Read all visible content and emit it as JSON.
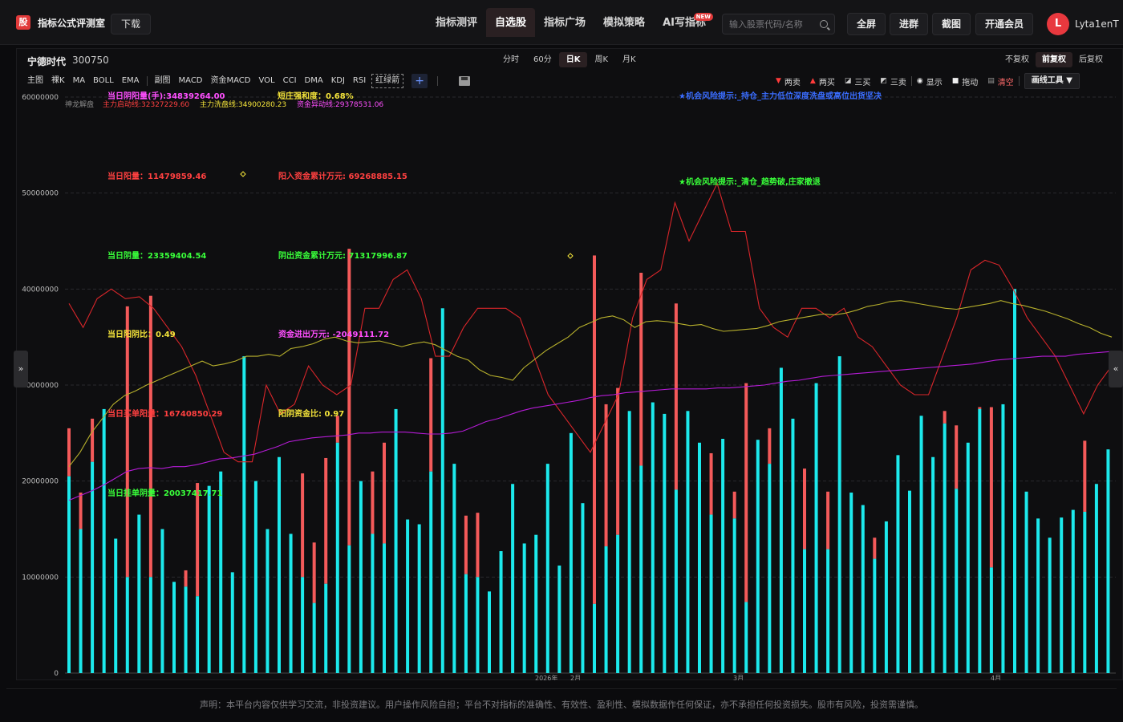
{
  "header": {
    "logo": "股",
    "app_title": "指标公式评测室",
    "download": "下载",
    "nav": [
      {
        "label": "指标测评"
      },
      {
        "label": "自选股"
      },
      {
        "label": "指标广场"
      },
      {
        "label": "模拟策略"
      },
      {
        "label": "AI写指标",
        "badge": "NEW"
      }
    ],
    "active_nav": "自选股",
    "search_placeholder": "输入股票代码/名称",
    "fullscreen": "全屏",
    "advanced": "进群",
    "screenshot": "截图",
    "membership": "开通会员",
    "avatar_letter": "L",
    "username": "Lyta1enT"
  },
  "stock": {
    "name": "宁德时代",
    "code": "300750"
  },
  "periods": [
    "分时",
    "60分",
    "日K",
    "周K",
    "月K"
  ],
  "active_period": "日K",
  "adjust": [
    "不复权",
    "前复权",
    "后复权"
  ],
  "active_adjust": "前复权",
  "indicators": {
    "group1": [
      "主图",
      "裸K",
      "MA",
      "BOLL",
      "EMA"
    ],
    "group2": [
      "副图",
      "MACD",
      "资金MACD",
      "VOL",
      "CCI",
      "DMA",
      "KDJ",
      "RSI"
    ],
    "redgreen": "红绿箭",
    "plus": "+"
  },
  "drawtools": {
    "sell2": "两卖",
    "buy2": "两买",
    "buy3": "三买",
    "sell3": "三卖",
    "show": "显示",
    "drag": "拖动",
    "clear": "清空",
    "tools": "画线工具 ▼"
  },
  "chart_data": {
    "type": "bar",
    "ylim": [
      0,
      60000000
    ],
    "y_ticks": [
      "60000000",
      "50000000",
      "40000000",
      "30000000",
      "20000000",
      "10000000",
      "0"
    ],
    "x_ticks": [
      "2026年",
      "2月",
      "3月",
      "4月"
    ],
    "legend_row": [
      "神龙解盘",
      "主力启动线:32327229.60",
      "主力洗盘线:34900280.23",
      "资金异动线:29378531.06"
    ],
    "annotations": [
      {
        "text": "当日阴阳量(手):34839264.00",
        "color": "#ff4fff"
      },
      {
        "text": "短庄强和度：0.68%",
        "color": "#f4e43a"
      },
      {
        "text": "★机会风险提示:_持仓_主力低位深度洗盘或高位出货坚决",
        "color": "#3a6dff"
      },
      {
        "text": "当日阳量：11479859.46",
        "color": "#ff4040"
      },
      {
        "text": "阳入资金累计万元: 69268885.15",
        "color": "#ff4040"
      },
      {
        "text": "★机会风险提示:_清仓_趋势破,庄家撤退",
        "color": "#39ff3a"
      },
      {
        "text": "当日阴量：23359404.54",
        "color": "#39ff3a"
      },
      {
        "text": "阴出资金累计万元: 71317996.87",
        "color": "#39ff3a"
      },
      {
        "text": "当日阳阴比：0.49",
        "color": "#f4e43a"
      },
      {
        "text": "资金进出万元: -2049111.72",
        "color": "#ff4fff"
      },
      {
        "text": "当日买单阳量：16740850.29",
        "color": "#ff4040"
      },
      {
        "text": "阳阴资金比: 0.97",
        "color": "#f4e43a"
      },
      {
        "text": "当日挂单阴量：20037417.71",
        "color": "#39ff3a"
      }
    ],
    "cyan_values": [
      20.5,
      15,
      22,
      27.5,
      14,
      10,
      16.5,
      10,
      15,
      9.5,
      9,
      8,
      19.5,
      21,
      10.5,
      33,
      20,
      15,
      22.5,
      14.5,
      10,
      7.3,
      9.3,
      24,
      13.3,
      20,
      14.5,
      13.5,
      27.5,
      16,
      15.5,
      21,
      38,
      21.8,
      10.3,
      10,
      8.5,
      12.7,
      19.7,
      13.5,
      14.4,
      21.8,
      11.2,
      25,
      17.7,
      7.2,
      13.2,
      14.4,
      27.3,
      21.6,
      28.2,
      27,
      19.1,
      27.3,
      24,
      16.5,
      24.4,
      16.1,
      7.4,
      24.3,
      21.8,
      31.8,
      26.5,
      12.9,
      30.2,
      12.9,
      33,
      18.8,
      17.5,
      11.9,
      15.8,
      22.7,
      19,
      26.8,
      22.5,
      26,
      19.2,
      24,
      27.5,
      11,
      28,
      40,
      18.9,
      16.1,
      14.1,
      16.2,
      17,
      16.8,
      19.7,
      23.3
    ],
    "red_tops": [
      25.5,
      18.8,
      26.5,
      27.5,
      14,
      38.2,
      16.5,
      39.3,
      15,
      9.5,
      10.7,
      19.8,
      19.5,
      21,
      10.5,
      33,
      20,
      15,
      22.5,
      14.5,
      20.8,
      13.6,
      22.4,
      26.8,
      44.2,
      20,
      21,
      24,
      27.5,
      16,
      15.5,
      32.8,
      38,
      21.8,
      16.4,
      16.7,
      8.5,
      12.7,
      19.7,
      13.5,
      14.4,
      21.8,
      11.2,
      25,
      17.7,
      43.5,
      28,
      29.7,
      27.3,
      41.7,
      28.2,
      27,
      38.5,
      27.3,
      24,
      22.9,
      24.4,
      18.9,
      30.2,
      24.3,
      25.5,
      31.8,
      26.5,
      21.3,
      30.2,
      18.9,
      33,
      18.8,
      17.5,
      14.1,
      15.8,
      22.7,
      19,
      26.8,
      22.5,
      27.3,
      25.8,
      24,
      27.7,
      27.7,
      28,
      40,
      18.9,
      16.1,
      14.1,
      16.2,
      17,
      24.2,
      19.7,
      23.3
    ],
    "line_red": [
      38.5,
      36,
      39,
      40,
      39,
      39.2,
      38,
      36,
      34,
      31,
      27,
      23,
      22,
      22,
      30,
      27,
      28,
      32,
      30,
      29,
      30,
      38,
      38,
      41,
      42,
      39,
      33,
      33,
      36,
      38,
      38,
      38,
      37,
      33,
      29,
      27,
      25,
      23,
      26,
      29,
      37,
      41,
      42,
      49,
      45,
      48,
      51,
      46,
      46,
      38,
      36,
      35,
      38,
      38,
      37,
      38,
      35,
      34,
      32,
      30,
      29,
      29,
      33,
      37,
      42,
      43,
      42.5,
      40,
      37,
      35,
      33,
      30,
      27,
      30,
      32
    ],
    "line_olive": [
      21.5,
      23,
      25,
      26.5,
      28,
      28.9,
      29.4,
      30,
      30.5,
      31,
      31.5,
      32,
      32.5,
      32,
      32.2,
      32.5,
      33,
      33,
      33.2,
      33,
      33.8,
      34,
      34.3,
      34.8,
      35,
      34.6,
      34.4,
      34.5,
      34.6,
      34.3,
      34,
      34.3,
      34.5,
      34.2,
      33.6,
      33,
      32.6,
      31.6,
      31,
      30.8,
      30.5,
      31.8,
      32.7,
      33.6,
      34.3,
      35,
      36,
      36.5,
      37,
      37.2,
      36.8,
      36,
      36.6,
      36.7,
      36.6,
      36.4,
      36.2,
      36.3,
      35.9,
      35.6,
      35.7,
      35.8,
      35.9,
      36.2,
      36.6,
      36.8,
      37,
      37.2,
      37.4,
      37.3,
      37.5,
      37.8,
      38.2,
      38.4,
      38.7,
      38.8,
      38.6,
      38.4,
      38.2,
      38,
      37.9,
      38.1,
      38.3,
      38.5,
      38.8,
      38.5,
      38.3,
      38,
      37.7,
      37.3,
      36.9,
      36.4,
      36,
      35.4,
      35
    ],
    "line_purple": [
      18,
      18.5,
      19,
      19.6,
      20.3,
      21,
      21.3,
      21.4,
      21.3,
      21.5,
      21.5,
      21.7,
      22,
      22.3,
      22.4,
      22.6,
      22.8,
      23.2,
      23.6,
      24.1,
      24.3,
      24.5,
      24.6,
      24.7,
      24.8,
      25,
      25,
      25.1,
      25.1,
      25.1,
      25,
      24.9,
      24.9,
      25,
      25.2,
      25.7,
      26.2,
      26.5,
      26.9,
      27.3,
      27.6,
      27.8,
      28,
      28.2,
      28.4,
      28.7,
      28.9,
      29,
      29.2,
      29.3,
      29.4,
      29.5,
      29.6,
      29.6,
      29.6,
      29.6,
      29.7,
      29.7,
      29.8,
      29.9,
      30,
      30.2,
      30.4,
      30.5,
      30.7,
      30.9,
      31,
      31.1,
      31.2,
      31.3,
      31.4,
      31.5,
      31.6,
      31.7,
      31.8,
      31.9,
      32,
      32.1,
      32.2,
      32.4,
      32.6,
      32.7,
      32.8,
      32.9,
      33,
      33,
      33,
      33.2,
      33.3,
      33.4,
      33.5
    ]
  },
  "side_left": "»",
  "side_right": "«",
  "footer": "声明：本平台内容仅供学习交流，非投资建议。用户操作风险自担；平台不对指标的准确性、有效性、盈利性、模拟数据作任何保证，亦不承担任何投资损失。股市有风险，投资需谨慎。"
}
